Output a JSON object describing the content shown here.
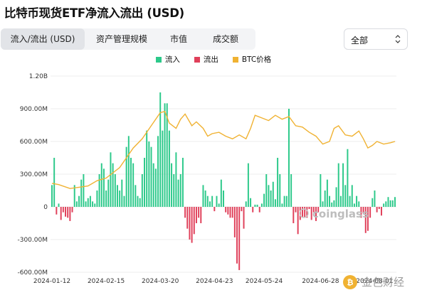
{
  "header": {
    "title": "比特币现货ETF净流入流出 (USD)"
  },
  "tabs": [
    {
      "label": "流入/流出 (USD)",
      "active": true
    },
    {
      "label": "资产管理规模",
      "active": false
    },
    {
      "label": "市值",
      "active": false
    },
    {
      "label": "成交额",
      "active": false
    }
  ],
  "filter": {
    "selected": "全部"
  },
  "watermark": {
    "text": "coinglass"
  },
  "badge": {
    "text": "金色财经"
  },
  "colors": {
    "inflow": "#2cc98a",
    "outflow": "#e0405a",
    "btc": "#f0b232"
  },
  "chart_data": {
    "type": "bar",
    "legend": [
      "流入",
      "流出",
      "BTC价格"
    ],
    "y_ticks": [
      "1.20B",
      "900.00M",
      "600.00M",
      "300.00M",
      "0",
      "-300.00M",
      "-600.00M"
    ],
    "ylim": [
      -600,
      1200
    ],
    "y_unit": "M USD",
    "x_tick_labels": [
      "2024-01-12",
      "2024-02-15",
      "2024-03-20",
      "2024-04-23",
      "2024-05-24",
      "2024-06-28",
      "2024-08-01"
    ],
    "x_tick_index": [
      0,
      24,
      48,
      72,
      94,
      119,
      143
    ],
    "flows": [
      200,
      450,
      -70,
      30,
      -120,
      -50,
      -90,
      -100,
      -130,
      -50,
      200,
      50,
      100,
      250,
      300,
      50,
      80,
      100,
      50,
      30,
      150,
      300,
      400,
      350,
      150,
      250,
      500,
      400,
      300,
      200,
      150,
      250,
      100,
      550,
      650,
      450,
      400,
      200,
      100,
      80,
      300,
      450,
      700,
      600,
      550,
      400,
      350,
      650,
      1050,
      700,
      950,
      950,
      700,
      400,
      300,
      500,
      250,
      300,
      450,
      -100,
      -200,
      -300,
      -330,
      -250,
      -150,
      -100,
      -150,
      200,
      150,
      100,
      50,
      100,
      -40,
      100,
      30,
      250,
      150,
      -50,
      -70,
      -100,
      -100,
      -280,
      -520,
      -580,
      -40,
      -200,
      50,
      400,
      80,
      -50,
      20,
      20,
      -50,
      30,
      120,
      300,
      200,
      150,
      230,
      70,
      450,
      300,
      30,
      100,
      100,
      900,
      300,
      -150,
      -50,
      -250,
      -120,
      -100,
      -100,
      -100,
      -20,
      -120,
      -50,
      -130,
      -50,
      300,
      50,
      150,
      250,
      100,
      40,
      60,
      180,
      400,
      100,
      400,
      200,
      530,
      100,
      200,
      30,
      100,
      50,
      -100,
      -60,
      -240,
      -220,
      -100,
      80,
      150,
      -50,
      -20,
      -80,
      30,
      50,
      90,
      60,
      60,
      90
    ],
    "btc_price_norm": [
      [
        0,
        0.18
      ],
      [
        3,
        0.17
      ],
      [
        8,
        0.14
      ],
      [
        12,
        0.15
      ],
      [
        16,
        0.16
      ],
      [
        20,
        0.2
      ],
      [
        24,
        0.22
      ],
      [
        30,
        0.3
      ],
      [
        36,
        0.45
      ],
      [
        40,
        0.52
      ],
      [
        44,
        0.62
      ],
      [
        48,
        0.72
      ],
      [
        50,
        0.73
      ],
      [
        52,
        0.64
      ],
      [
        55,
        0.6
      ],
      [
        57,
        0.67
      ],
      [
        59,
        0.71
      ],
      [
        62,
        0.62
      ],
      [
        64,
        0.65
      ],
      [
        67,
        0.6
      ],
      [
        69,
        0.54
      ],
      [
        71,
        0.56
      ],
      [
        74,
        0.57
      ],
      [
        77,
        0.54
      ],
      [
        80,
        0.52
      ],
      [
        83,
        0.55
      ],
      [
        86,
        0.52
      ],
      [
        88,
        0.6
      ],
      [
        90,
        0.7
      ],
      [
        93,
        0.68
      ],
      [
        96,
        0.66
      ],
      [
        99,
        0.7
      ],
      [
        102,
        0.67
      ],
      [
        105,
        0.69
      ],
      [
        108,
        0.62
      ],
      [
        111,
        0.61
      ],
      [
        114,
        0.57
      ],
      [
        117,
        0.54
      ],
      [
        120,
        0.48
      ],
      [
        123,
        0.5
      ],
      [
        125,
        0.6
      ],
      [
        127,
        0.62
      ],
      [
        130,
        0.55
      ],
      [
        133,
        0.54
      ],
      [
        136,
        0.58
      ],
      [
        138,
        0.52
      ],
      [
        140,
        0.45
      ],
      [
        142,
        0.47
      ],
      [
        144,
        0.5
      ],
      [
        147,
        0.48
      ],
      [
        150,
        0.49
      ],
      [
        152,
        0.5
      ]
    ]
  }
}
